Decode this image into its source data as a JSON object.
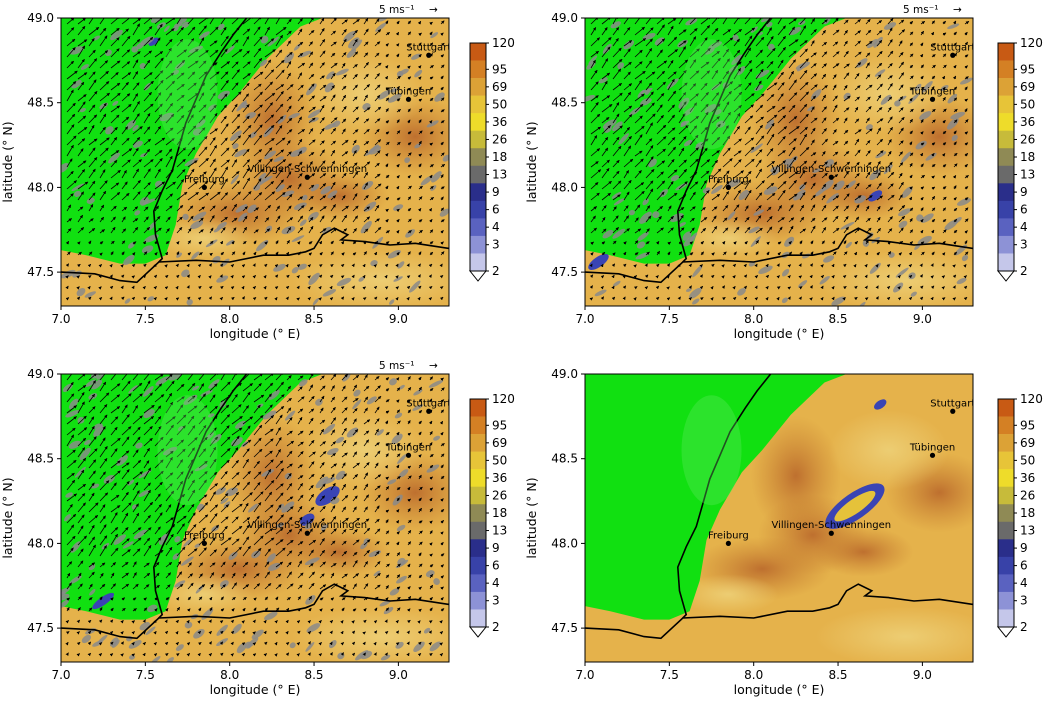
{
  "axes": {
    "xlabel": "longitude (° E)",
    "ylabel": "latitude (° N)",
    "xticks": [
      "7.0",
      "7.5",
      "8.0",
      "8.5",
      "9.0"
    ],
    "yticks": [
      "47.5",
      "48.0",
      "48.5",
      "49.0"
    ],
    "xlim": [
      7.0,
      9.3
    ],
    "ylim": [
      47.3,
      49.0
    ]
  },
  "vector_key": {
    "label": "5 ms⁻¹",
    "arrow": "→"
  },
  "colorbar": {
    "labels": [
      "120",
      "95",
      "69",
      "50",
      "36",
      "26",
      "18",
      "13",
      "9",
      "6",
      "4",
      "3",
      "2"
    ],
    "colors": [
      "#c85a14",
      "#d48024",
      "#dca236",
      "#e7c438",
      "#eedc2a",
      "#c7bb3a",
      "#8f8a55",
      "#6a6a6a",
      "#2a2e8a",
      "#3842a8",
      "#5a62c0",
      "#8d92d6",
      "#c5c7ea"
    ],
    "extend": "min"
  },
  "colors": {
    "lowland_green": "#11e011",
    "light_green": "#5ee85e",
    "terrain_base": "#e5b24b",
    "terrain_dark": "#c47a2e",
    "grey_cells": "#8a8a8a",
    "border_line": "#000000"
  },
  "places": [
    {
      "name": "Stuttgart",
      "lon": 9.18,
      "lat": 48.78
    },
    {
      "name": "Tübingen",
      "lon": 9.06,
      "lat": 48.52
    },
    {
      "name": "Freiburg",
      "lon": 7.85,
      "lat": 48.0
    },
    {
      "name": "Villingen-Schwenningen",
      "lon": 8.46,
      "lat": 48.06
    }
  ],
  "panels": [
    {
      "id": "top-left",
      "wind_arrows": true,
      "show_vector_key": true
    },
    {
      "id": "top-right",
      "wind_arrows": true,
      "show_vector_key": true
    },
    {
      "id": "bottom-left",
      "wind_arrows": true,
      "show_vector_key": true
    },
    {
      "id": "bottom-right",
      "wind_arrows": false,
      "show_vector_key": false
    }
  ]
}
